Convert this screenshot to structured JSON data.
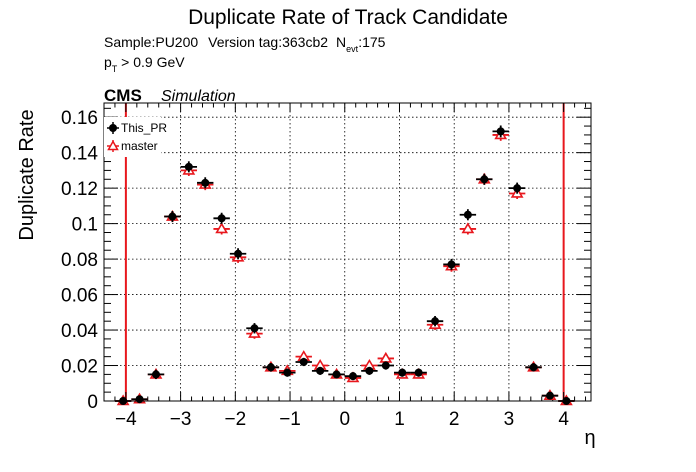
{
  "chart_data": {
    "type": "scatter",
    "title": "Duplicate Rate of Track Candidate",
    "info": {
      "sample": "Sample:PU200",
      "version": "Version tag:363cb2",
      "nevt_prefix": "N",
      "nevt_sub": "evt",
      "nevt_value": ":175",
      "pt_prefix": "p",
      "pt_sub": "T",
      "pt_value": " > 0.9 GeV"
    },
    "cms_label": "CMS",
    "simulation_label": "Simulation",
    "xlabel": "η",
    "ylabel": "Duplicate Rate",
    "xlim": [
      -4.4,
      4.5
    ],
    "ylim": [
      0,
      0.168
    ],
    "xticks": [
      -4,
      -3,
      -2,
      -1,
      0,
      1,
      2,
      3,
      4
    ],
    "xtick_labels": [
      "−4",
      "−3",
      "−2",
      "−1",
      "0",
      "1",
      "2",
      "3",
      "4"
    ],
    "yticks": [
      0,
      0.02,
      0.04,
      0.06,
      0.08,
      0.1,
      0.12,
      0.14,
      0.16
    ],
    "ytick_labels": [
      "0",
      "0.02",
      "0.04",
      "0.06",
      "0.08",
      "0.1",
      "0.12",
      "0.14",
      "0.16"
    ],
    "grid": true,
    "legend_position": "top-left",
    "bin_width": 0.3,
    "vertical_lines": [
      -4.0,
      4.0
    ],
    "x": [
      -4.05,
      -3.75,
      -3.45,
      -3.15,
      -2.85,
      -2.55,
      -2.25,
      -1.95,
      -1.65,
      -1.35,
      -1.05,
      -0.75,
      -0.45,
      -0.15,
      0.15,
      0.45,
      0.75,
      1.05,
      1.35,
      1.65,
      1.95,
      2.25,
      2.55,
      2.85,
      3.15,
      3.45,
      3.75,
      4.05
    ],
    "series": [
      {
        "name": "This_PR",
        "marker": "circle",
        "color": "#000000",
        "values": [
          0.0,
          0.001,
          0.015,
          0.104,
          0.132,
          0.123,
          0.103,
          0.083,
          0.041,
          0.019,
          0.016,
          0.022,
          0.017,
          0.015,
          0.014,
          0.017,
          0.02,
          0.016,
          0.016,
          0.045,
          0.077,
          0.105,
          0.125,
          0.152,
          0.12,
          0.019,
          0.003,
          0.0
        ],
        "errors": [
          0.0,
          0.0008,
          0.0015,
          0.002,
          0.002,
          0.002,
          0.002,
          0.002,
          0.0018,
          0.0013,
          0.0012,
          0.0012,
          0.0011,
          0.0011,
          0.0011,
          0.0011,
          0.0012,
          0.0012,
          0.0012,
          0.0018,
          0.002,
          0.002,
          0.002,
          0.0022,
          0.002,
          0.0012,
          0.0008,
          0.0
        ]
      },
      {
        "name": "master",
        "marker": "open-triangle",
        "color": "#e8171d",
        "values": [
          0.0,
          0.001,
          0.015,
          0.104,
          0.13,
          0.122,
          0.097,
          0.081,
          0.038,
          0.019,
          0.017,
          0.025,
          0.02,
          0.015,
          0.013,
          0.02,
          0.024,
          0.015,
          0.015,
          0.043,
          0.076,
          0.097,
          0.125,
          0.15,
          0.117,
          0.019,
          0.003,
          0.0
        ],
        "errors": [
          0.0,
          0.0008,
          0.0015,
          0.002,
          0.002,
          0.002,
          0.002,
          0.002,
          0.0018,
          0.0013,
          0.0012,
          0.0012,
          0.0011,
          0.0011,
          0.0011,
          0.0011,
          0.0012,
          0.0012,
          0.0012,
          0.0018,
          0.002,
          0.002,
          0.002,
          0.0022,
          0.002,
          0.0012,
          0.0008,
          0.0
        ]
      }
    ]
  }
}
